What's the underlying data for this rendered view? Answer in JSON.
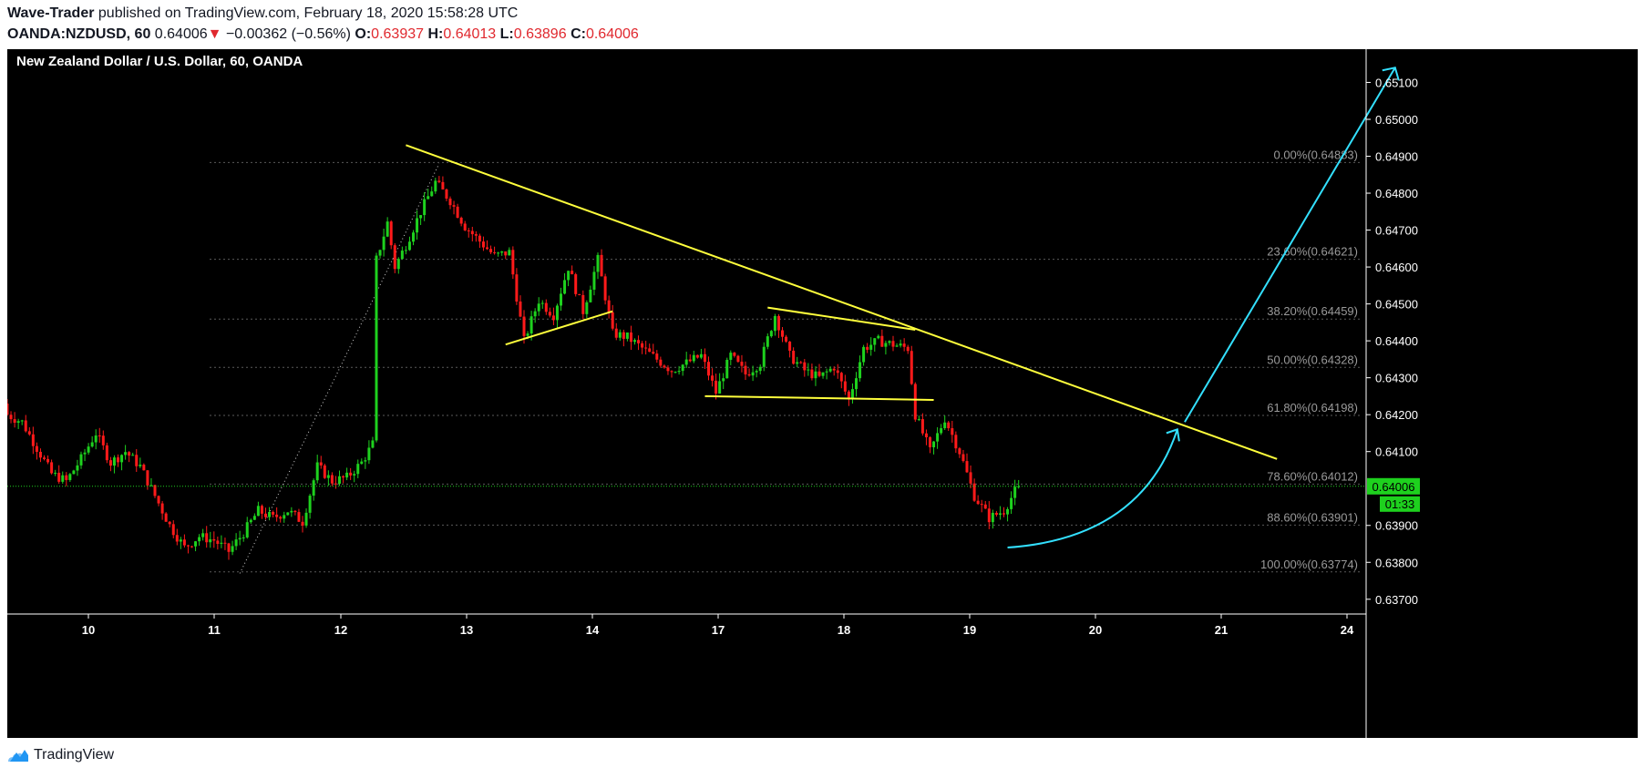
{
  "header": {
    "author": "Wave-Trader",
    "published_text": "published on TradingView.com, February 18, 2020 15:58:28 UTC",
    "symbol": "OANDA:NZDUSD, 60",
    "last": "0.64006",
    "down_arrow": "▼",
    "change": "−0.00362 (−0.56%)",
    "o_label": "O:",
    "o_value": "0.63937",
    "h_label": "H:",
    "h_value": "0.64013",
    "l_label": "L:",
    "l_value": "0.63896",
    "c_label": "C:",
    "c_value": "0.64006"
  },
  "footer": {
    "brand": "TradingView",
    "logo_icon": "tradingview-cloud-icon"
  },
  "colors": {
    "background": "#000000",
    "up_candle": "#1ed11e",
    "down_candle": "#ff1a1a",
    "trendline": "#ffff3c",
    "arrow": "#33e0ff",
    "fib_grid": "#5a5a5a",
    "price_line": "#1ed11e"
  },
  "chart_data": {
    "type": "candlestick",
    "title": "New Zealand Dollar / U.S. Dollar, 60, OANDA",
    "y_ticks": [
      "0.65100",
      "0.65000",
      "0.64900",
      "0.64800",
      "0.64700",
      "0.64600",
      "0.64500",
      "0.64400",
      "0.64300",
      "0.64200",
      "0.64100",
      "0.63900",
      "0.63800",
      "0.63700"
    ],
    "ylim": [
      0.6366,
      0.6519
    ],
    "x_ticks": [
      "10",
      "11",
      "12",
      "13",
      "14",
      "17",
      "18",
      "19",
      "20",
      "21",
      "24"
    ],
    "current_price": "0.64006",
    "countdown": "01:33",
    "fibonacci": [
      {
        "label": "0.00%(0.64883)",
        "price": 0.64883
      },
      {
        "label": "23.60%(0.64621)",
        "price": 0.64621
      },
      {
        "label": "38.20%(0.64459)",
        "price": 0.64459
      },
      {
        "label": "50.00%(0.64328)",
        "price": 0.64328
      },
      {
        "label": "61.80%(0.64198)",
        "price": 0.64198
      },
      {
        "label": "78.60%(0.64012)",
        "price": 0.64012
      },
      {
        "label": "88.60%(0.63901)",
        "price": 0.63901
      },
      {
        "label": "100.00%(0.63774)",
        "price": 0.63774
      }
    ],
    "close_path": [
      [
        0,
        0.642
      ],
      [
        4,
        0.6418
      ],
      [
        8,
        0.6411
      ],
      [
        12,
        0.6404
      ],
      [
        16,
        0.6402
      ],
      [
        20,
        0.6408
      ],
      [
        24,
        0.6415
      ],
      [
        28,
        0.6407
      ],
      [
        32,
        0.641
      ],
      [
        36,
        0.6406
      ],
      [
        40,
        0.6398
      ],
      [
        44,
        0.639
      ],
      [
        48,
        0.6384
      ],
      [
        52,
        0.6387
      ],
      [
        56,
        0.6386
      ],
      [
        60,
        0.6383
      ],
      [
        64,
        0.6388
      ],
      [
        68,
        0.6394
      ],
      [
        72,
        0.6392
      ],
      [
        76,
        0.6394
      ],
      [
        80,
        0.6391
      ],
      [
        84,
        0.6406
      ],
      [
        88,
        0.6402
      ],
      [
        92,
        0.6403
      ],
      [
        96,
        0.6407
      ],
      [
        99,
        0.6412
      ],
      [
        100,
        0.6462
      ],
      [
        103,
        0.6472
      ],
      [
        105,
        0.646
      ],
      [
        108,
        0.6466
      ],
      [
        112,
        0.6475
      ],
      [
        116,
        0.6483
      ],
      [
        120,
        0.6478
      ],
      [
        124,
        0.6471
      ],
      [
        128,
        0.6467
      ],
      [
        132,
        0.6463
      ],
      [
        136,
        0.6464
      ],
      [
        140,
        0.644
      ],
      [
        144,
        0.6451
      ],
      [
        148,
        0.6447
      ],
      [
        152,
        0.646
      ],
      [
        156,
        0.6448
      ],
      [
        160,
        0.6462
      ],
      [
        164,
        0.6442
      ],
      [
        168,
        0.6441
      ],
      [
        172,
        0.6438
      ],
      [
        176,
        0.6435
      ],
      [
        180,
        0.6432
      ],
      [
        184,
        0.6434
      ],
      [
        188,
        0.6436
      ],
      [
        192,
        0.6426
      ],
      [
        196,
        0.6436
      ],
      [
        200,
        0.6431
      ],
      [
        204,
        0.6434
      ],
      [
        208,
        0.6447
      ],
      [
        212,
        0.6436
      ],
      [
        216,
        0.6432
      ],
      [
        220,
        0.643
      ],
      [
        224,
        0.6433
      ],
      [
        228,
        0.6424
      ],
      [
        232,
        0.6438
      ],
      [
        236,
        0.644
      ],
      [
        240,
        0.6439
      ],
      [
        244,
        0.6438
      ],
      [
        246,
        0.642
      ],
      [
        250,
        0.641
      ],
      [
        254,
        0.6419
      ],
      [
        258,
        0.641
      ],
      [
        262,
        0.6398
      ],
      [
        266,
        0.6392
      ],
      [
        270,
        0.6394
      ],
      [
        274,
        0.6401
      ]
    ],
    "annotations": {
      "fib_anchor_line": [
        [
          0.6377,
          63
        ],
        [
          0.6488,
          117
        ]
      ],
      "main_trendline": [
        [
          0.6493,
          108
        ],
        [
          0.6408,
          344
        ]
      ],
      "small_trendline": [
        [
          0.6439,
          135
        ],
        [
          0.6448,
          164
        ]
      ],
      "triangle_upper": [
        [
          0.6449,
          206
        ],
        [
          0.6443,
          246
        ]
      ],
      "triangle_lower": [
        [
          0.6425,
          189
        ],
        [
          0.6424,
          251
        ]
      ],
      "curve_arrow": {
        "start": [
          0.6384,
          271
        ],
        "end": [
          0.6416,
          317
        ]
      },
      "straight_arrow": {
        "start": [
          0.6418,
          319
        ],
        "end": [
          0.6514,
          376
        ]
      }
    }
  }
}
